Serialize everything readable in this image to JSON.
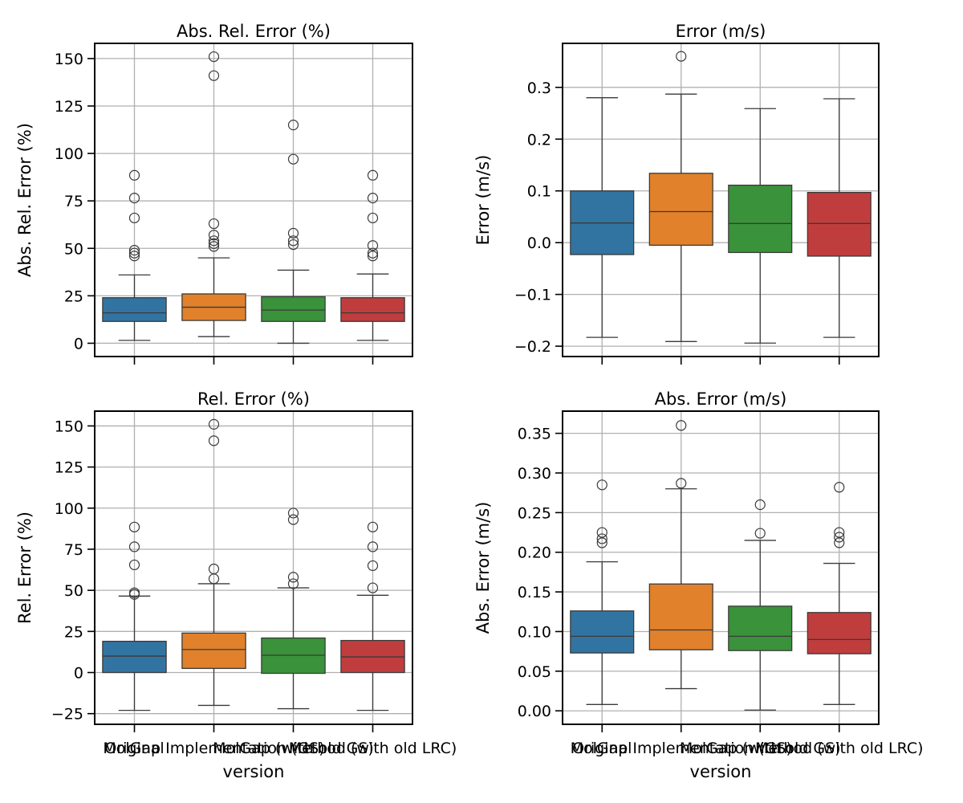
{
  "chart_data": [
    {
      "type": "box",
      "title": "Abs. Rel. Error (%)",
      "xlabel": "",
      "ylabel": "Abs. Rel. Error (%)",
      "ylim": [
        -7,
        158
      ],
      "yticks": [
        0,
        25,
        50,
        75,
        100,
        125,
        150
      ],
      "ytick_labels": [
        "0",
        "25",
        "50",
        "75",
        "100",
        "125",
        "150"
      ],
      "grid": true,
      "categories": [
        "Original",
        "MolGap Implementation (GS)",
        "MolGap (with old GS)",
        "Method (with old LRC)"
      ],
      "show_category_labels": false,
      "boxes": [
        {
          "color": "#3274a1",
          "whisker_low": 1.5,
          "q1": 11.5,
          "median": 16,
          "q3": 24,
          "whisker_high": 36,
          "outliers": [
            46,
            47.5,
            49,
            66,
            76.5,
            88.5
          ]
        },
        {
          "color": "#e1812c",
          "whisker_low": 3.5,
          "q1": 12,
          "median": 19,
          "q3": 26,
          "whisker_high": 45,
          "outliers": [
            51,
            52.5,
            54,
            57,
            63,
            141,
            151
          ]
        },
        {
          "color": "#3a923a",
          "whisker_low": 0,
          "q1": 11.5,
          "median": 17.5,
          "q3": 24.5,
          "whisker_high": 38.5,
          "outliers": [
            52,
            54,
            58,
            97,
            115
          ]
        },
        {
          "color": "#c03d3e",
          "whisker_low": 1.5,
          "q1": 11.5,
          "median": 16,
          "q3": 24,
          "whisker_high": 36.5,
          "outliers": [
            46,
            47.5,
            51.5,
            66,
            76.5,
            88.5
          ]
        }
      ]
    },
    {
      "type": "box",
      "title": "Error (m/s)",
      "xlabel": "",
      "ylabel": "Error (m/s)",
      "ylim": [
        -0.22,
        0.385
      ],
      "yticks": [
        -0.2,
        -0.1,
        0.0,
        0.1,
        0.2,
        0.3
      ],
      "ytick_labels": [
        "−0.2",
        "−0.1",
        "0.0",
        "0.1",
        "0.2",
        "0.3"
      ],
      "grid": true,
      "categories": [
        "Original",
        "MolGap Implementation (GS)",
        "MolGap (with old GS)",
        "Method (with old LRC)"
      ],
      "show_category_labels": false,
      "boxes": [
        {
          "color": "#3274a1",
          "whisker_low": -0.183,
          "q1": -0.023,
          "median": 0.038,
          "q3": 0.1,
          "whisker_high": 0.28,
          "outliers": []
        },
        {
          "color": "#e1812c",
          "whisker_low": -0.191,
          "q1": -0.005,
          "median": 0.06,
          "q3": 0.134,
          "whisker_high": 0.287,
          "outliers": [
            0.36
          ]
        },
        {
          "color": "#3a923a",
          "whisker_low": -0.194,
          "q1": -0.019,
          "median": 0.037,
          "q3": 0.111,
          "whisker_high": 0.259,
          "outliers": []
        },
        {
          "color": "#c03d3e",
          "whisker_low": -0.183,
          "q1": -0.026,
          "median": 0.037,
          "q3": 0.097,
          "whisker_high": 0.278,
          "outliers": []
        }
      ]
    },
    {
      "type": "box",
      "title": "Rel. Error (%)",
      "xlabel": "version",
      "ylabel": "Rel. Error (%)",
      "ylim": [
        -31.5,
        159
      ],
      "yticks": [
        -25,
        0,
        25,
        50,
        75,
        100,
        125,
        150
      ],
      "ytick_labels": [
        "−25",
        "0",
        "25",
        "50",
        "75",
        "100",
        "125",
        "150"
      ],
      "grid": true,
      "categories": [
        "Original",
        "MolGap Implementation (GS)",
        "MolGap (with old GS)",
        "Method (with old LRC)"
      ],
      "show_category_labels": true,
      "boxes": [
        {
          "color": "#3274a1",
          "whisker_low": -23,
          "q1": 0,
          "median": 10,
          "q3": 19,
          "whisker_high": 46.5,
          "outliers": [
            47.5,
            48.5,
            65.5,
            76.5,
            88.5
          ]
        },
        {
          "color": "#e1812c",
          "whisker_low": -20,
          "q1": 2.5,
          "median": 14,
          "q3": 24,
          "whisker_high": 54,
          "outliers": [
            57,
            63,
            141,
            151
          ]
        },
        {
          "color": "#3a923a",
          "whisker_low": -22,
          "q1": -0.5,
          "median": 10.5,
          "q3": 21,
          "whisker_high": 51.5,
          "outliers": [
            54,
            58,
            93,
            97
          ]
        },
        {
          "color": "#c03d3e",
          "whisker_low": -23,
          "q1": 0,
          "median": 9.5,
          "q3": 19.5,
          "whisker_high": 47,
          "outliers": [
            51.5,
            65,
            76.5,
            88.5
          ]
        }
      ]
    },
    {
      "type": "box",
      "title": "Abs. Error (m/s)",
      "xlabel": "version",
      "ylabel": "Abs. Error (m/s)",
      "ylim": [
        -0.017,
        0.378
      ],
      "yticks": [
        0.0,
        0.05,
        0.1,
        0.15,
        0.2,
        0.25,
        0.3,
        0.35
      ],
      "ytick_labels": [
        "0.00",
        "0.05",
        "0.10",
        "0.15",
        "0.20",
        "0.25",
        "0.30",
        "0.35"
      ],
      "grid": true,
      "categories": [
        "Original",
        "MolGap Implementation (GS)",
        "MolGap (with old GS)",
        "Method (with old LRC)"
      ],
      "show_category_labels": true,
      "boxes": [
        {
          "color": "#3274a1",
          "whisker_low": 0.008,
          "q1": 0.073,
          "median": 0.094,
          "q3": 0.126,
          "whisker_high": 0.188,
          "outliers": [
            0.212,
            0.217,
            0.225,
            0.285
          ]
        },
        {
          "color": "#e1812c",
          "whisker_low": 0.028,
          "q1": 0.077,
          "median": 0.102,
          "q3": 0.16,
          "whisker_high": 0.28,
          "outliers": [
            0.287,
            0.36
          ]
        },
        {
          "color": "#3a923a",
          "whisker_low": 0.001,
          "q1": 0.076,
          "median": 0.094,
          "q3": 0.132,
          "whisker_high": 0.215,
          "outliers": [
            0.224,
            0.26
          ]
        },
        {
          "color": "#c03d3e",
          "whisker_low": 0.008,
          "q1": 0.072,
          "median": 0.09,
          "q3": 0.124,
          "whisker_high": 0.186,
          "outliers": [
            0.212,
            0.219,
            0.225,
            0.282
          ]
        }
      ]
    }
  ]
}
